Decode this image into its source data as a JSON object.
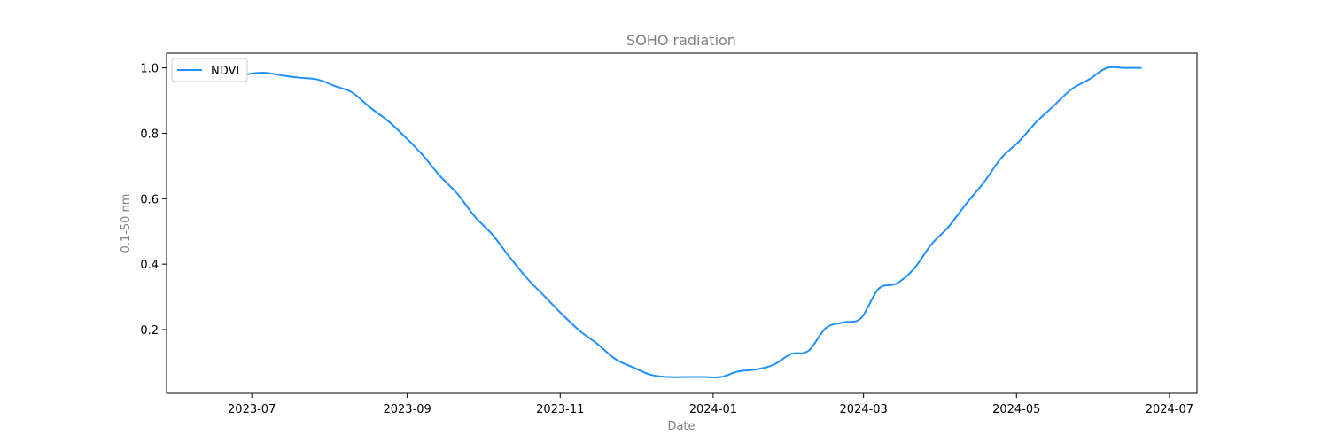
{
  "chart_data": {
    "type": "line",
    "title": "SOHO radiation",
    "xlabel": "Date",
    "ylabel": "0.1-50 nm",
    "x_range": [
      "2023-05-28",
      "2024-07-12"
    ],
    "ylim": [
      0.005,
      1.045
    ],
    "x_ticks": [
      "2023-07",
      "2023-09",
      "2023-11",
      "2024-01",
      "2024-03",
      "2024-05",
      "2024-07"
    ],
    "y_ticks": [
      "0.2",
      "0.4",
      "0.6",
      "0.8",
      "1.0"
    ],
    "grid": false,
    "legend_position": "top-left",
    "line_color": "#1e90ff",
    "series": [
      {
        "name": "NDVI",
        "x": [
          "2023-06-22",
          "2023-06-29",
          "2023-07-06",
          "2023-07-13",
          "2023-07-20",
          "2023-07-27",
          "2023-08-03",
          "2023-08-10",
          "2023-08-17",
          "2023-08-24",
          "2023-08-31",
          "2023-09-07",
          "2023-09-14",
          "2023-09-21",
          "2023-09-28",
          "2023-10-05",
          "2023-10-12",
          "2023-10-19",
          "2023-10-26",
          "2023-11-02",
          "2023-11-09",
          "2023-11-16",
          "2023-11-23",
          "2023-11-30",
          "2023-12-07",
          "2023-12-14",
          "2023-12-21",
          "2023-12-28",
          "2024-01-04",
          "2024-01-11",
          "2024-01-18",
          "2024-01-25",
          "2024-02-01",
          "2024-02-08",
          "2024-02-15",
          "2024-02-22",
          "2024-02-29",
          "2024-03-07",
          "2024-03-14",
          "2024-03-21",
          "2024-03-28",
          "2024-04-04",
          "2024-04-11",
          "2024-04-18",
          "2024-04-25",
          "2024-05-02",
          "2024-05-09",
          "2024-05-16",
          "2024-05-23",
          "2024-05-30",
          "2024-06-06",
          "2024-06-13",
          "2024-06-20"
        ],
        "values": [
          0.96,
          0.98,
          0.985,
          0.977,
          0.97,
          0.965,
          0.945,
          0.925,
          0.88,
          0.84,
          0.79,
          0.735,
          0.67,
          0.615,
          0.545,
          0.49,
          0.42,
          0.355,
          0.3,
          0.245,
          0.195,
          0.155,
          0.11,
          0.085,
          0.062,
          0.055,
          0.055,
          0.055,
          0.055,
          0.072,
          0.078,
          0.092,
          0.125,
          0.135,
          0.205,
          0.222,
          0.235,
          0.325,
          0.34,
          0.385,
          0.46,
          0.515,
          0.585,
          0.65,
          0.725,
          0.775,
          0.835,
          0.885,
          0.935,
          0.965,
          1.0,
          1.0,
          1.0
        ]
      }
    ]
  }
}
